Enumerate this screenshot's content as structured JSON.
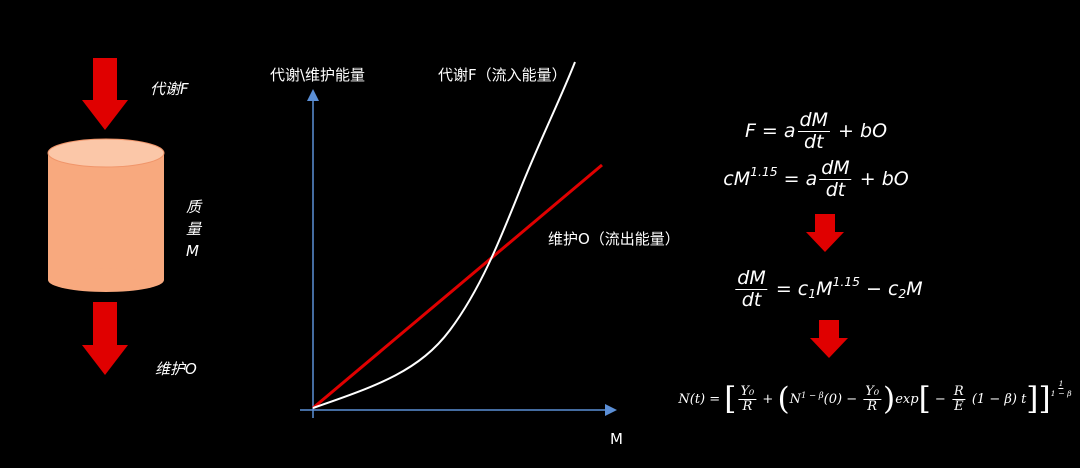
{
  "left": {
    "input_label": "代谢F",
    "mass_label": [
      "质",
      "量",
      "M"
    ],
    "output_label": "维护O"
  },
  "graph": {
    "y_axis_label": "代谢\\维护能量",
    "curve_label": "代谢F（流入能量）",
    "line_label": "维护O（流出能量）",
    "x_axis_label": "M"
  },
  "equations": [
    {
      "tokens": [
        {
          "t": "F = a"
        },
        {
          "num": "dM",
          "den": "dt"
        },
        {
          "t": " + bO"
        }
      ]
    },
    {
      "tokens": [
        {
          "t": "cM"
        },
        {
          "sup": "1.15"
        },
        {
          "t": " = a"
        },
        {
          "num": "dM",
          "den": "dt"
        },
        {
          "t": " + bO"
        }
      ]
    },
    {
      "tokens": [
        {
          "num": "dM",
          "den": "dt"
        },
        {
          "t": " = c"
        },
        {
          "sub": "1"
        },
        {
          "t": "M"
        },
        {
          "sup": "1.15"
        },
        {
          "t": " − c"
        },
        {
          "sub": "2"
        },
        {
          "t": "M"
        }
      ]
    },
    {
      "tokens": [
        {
          "t": "N(t) = "
        },
        {
          "big": "["
        },
        {
          "num": "Y₀",
          "den": "R"
        },
        {
          "t": " + "
        },
        {
          "big": "("
        },
        {
          "t": "N"
        },
        {
          "sup": "1 − β"
        },
        {
          "t": "(0) − "
        },
        {
          "num": "Y₀",
          "den": "R"
        },
        {
          "big": ")"
        },
        {
          "t": "exp"
        },
        {
          "big": "["
        },
        {
          "t": " − "
        },
        {
          "num": "R",
          "den": "E"
        },
        {
          "t": " (1 − β) t"
        },
        {
          "big": "]"
        },
        {
          "big": "]"
        },
        {
          "sup_num": "1",
          "sup_den": "1 − β"
        }
      ]
    }
  ]
}
